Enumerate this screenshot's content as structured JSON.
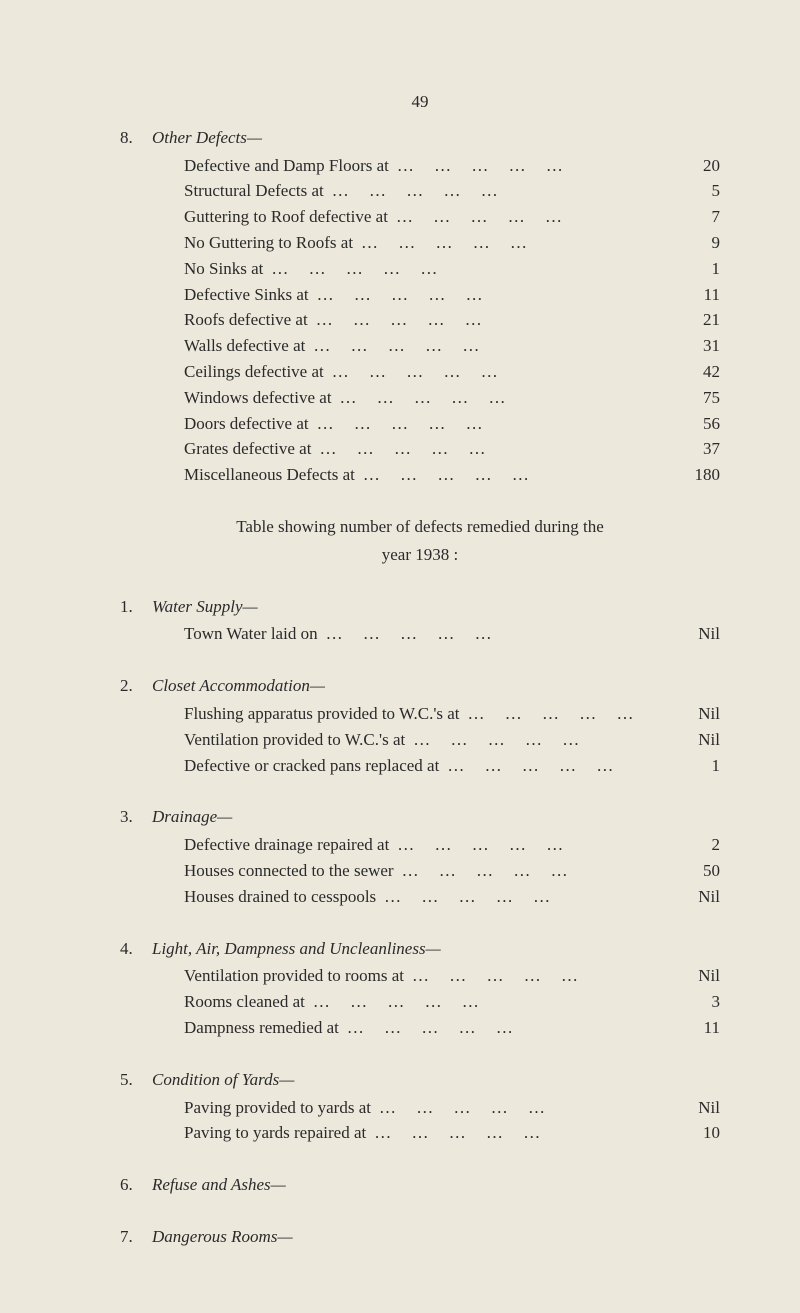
{
  "page_number": "49",
  "sections": [
    {
      "num": "8.",
      "title": "Other Defects—",
      "items": [
        {
          "label": "Defective and Damp Floors at",
          "value": "20"
        },
        {
          "label": "Structural Defects at",
          "value": "5"
        },
        {
          "label": "Guttering to Roof defective at",
          "value": "7"
        },
        {
          "label": "No Guttering to Roofs at",
          "value": "9"
        },
        {
          "label": "No Sinks at",
          "value": "1"
        },
        {
          "label": "Defective Sinks at",
          "value": "11"
        },
        {
          "label": "Roofs defective at",
          "value": "21"
        },
        {
          "label": "Walls defective at",
          "value": "31"
        },
        {
          "label": "Ceilings defective at",
          "value": "42"
        },
        {
          "label": "Windows defective at",
          "value": "75"
        },
        {
          "label": "Doors defective at",
          "value": "56"
        },
        {
          "label": "Grates defective at",
          "value": "37"
        },
        {
          "label": "Miscellaneous Defects at",
          "value": "180"
        }
      ]
    }
  ],
  "intro_line_1": "Table showing number of defects remedied during the",
  "intro_line_2": "year 1938 :",
  "sections2": [
    {
      "num": "1.",
      "title": "Water Supply—",
      "items": [
        {
          "label": "Town Water laid on",
          "value": "Nil"
        }
      ]
    },
    {
      "num": "2.",
      "title": "Closet Accommodation—",
      "items": [
        {
          "label": "Flushing apparatus provided to W.C.'s at",
          "value": "Nil"
        },
        {
          "label": "Ventilation provided to W.C.'s at",
          "value": "Nil"
        },
        {
          "label": "Defective or cracked pans replaced at",
          "value": "1"
        }
      ]
    },
    {
      "num": "3.",
      "title": "Drainage—",
      "items": [
        {
          "label": "Defective drainage repaired at",
          "value": "2"
        },
        {
          "label": "Houses connected to the sewer",
          "value": "50"
        },
        {
          "label": "Houses drained to cesspools",
          "value": "Nil"
        }
      ]
    },
    {
      "num": "4.",
      "title": "Light, Air, Dampness and Uncleanliness—",
      "items": [
        {
          "label": "Ventilation provided to rooms at",
          "value": "Nil"
        },
        {
          "label": "Rooms cleaned at",
          "value": "3"
        },
        {
          "label": "Dampness remedied at",
          "value": "11"
        }
      ]
    },
    {
      "num": "5.",
      "title": "Condition of Yards—",
      "items": [
        {
          "label": "Paving provided to yards at",
          "value": "Nil"
        },
        {
          "label": "Paving to yards repaired at",
          "value": "10"
        }
      ]
    },
    {
      "num": "6.",
      "title": "Refuse and Ashes—",
      "items": []
    },
    {
      "num": "7.",
      "title": "Dangerous Rooms—",
      "items": []
    }
  ],
  "dots_text": "…  …  …  …  …"
}
